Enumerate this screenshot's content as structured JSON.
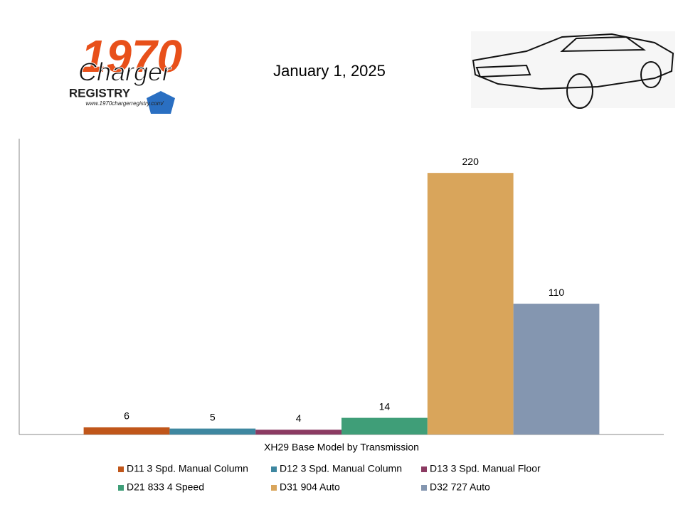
{
  "logo": {
    "year": "1970",
    "script": "Charger",
    "registry": "REGISTRY",
    "url": "www.1970chargerregistry.com/"
  },
  "chart_data": {
    "type": "bar",
    "title": "January 1, 2025",
    "categories": [
      "XH29 Base Model by Transmission"
    ],
    "series": [
      {
        "name": "D11 3 Spd. Manual Column",
        "color": "#c0561a",
        "values": [
          6
        ]
      },
      {
        "name": "D12 3 Spd. Manual Column",
        "color": "#3e87a0",
        "values": [
          5
        ]
      },
      {
        "name": "D13 3 Spd. Manual Floor",
        "color": "#8b3a62",
        "values": [
          4
        ]
      },
      {
        "name": "D21 833 4 Speed",
        "color": "#3f9e78",
        "values": [
          14
        ]
      },
      {
        "name": "D31 904 Auto",
        "color": "#d9a55b",
        "values": [
          220
        ]
      },
      {
        "name": "D32 727 Auto",
        "color": "#8496b0",
        "values": [
          110
        ]
      }
    ],
    "ylim": [
      0,
      250
    ],
    "legend": "bottom"
  }
}
